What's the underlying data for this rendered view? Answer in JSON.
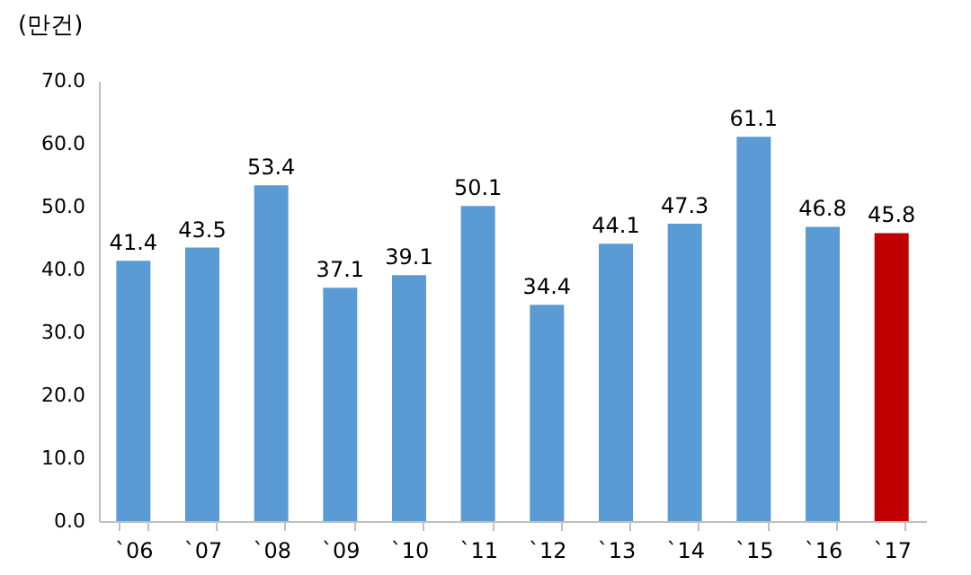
{
  "chart_data": {
    "type": "bar",
    "ylabel": "(만건)",
    "categories": [
      "`06",
      "`07",
      "`08",
      "`09",
      "`10",
      "`11",
      "`12",
      "`13",
      "`14",
      "`15",
      "`16",
      "`17"
    ],
    "values": [
      41.4,
      43.5,
      53.4,
      37.1,
      39.1,
      50.1,
      34.4,
      44.1,
      47.3,
      61.1,
      46.8,
      45.8
    ],
    "colors": [
      "#5b9bd5",
      "#5b9bd5",
      "#5b9bd5",
      "#5b9bd5",
      "#5b9bd5",
      "#5b9bd5",
      "#5b9bd5",
      "#5b9bd5",
      "#5b9bd5",
      "#5b9bd5",
      "#5b9bd5",
      "#c00000"
    ],
    "ylim": [
      0,
      70
    ],
    "yticks": [
      {
        "value": 0,
        "label": "0.0"
      },
      {
        "value": 10,
        "label": "10.0"
      },
      {
        "value": 20,
        "label": "20.0"
      },
      {
        "value": 30,
        "label": "30.0"
      },
      {
        "value": 40,
        "label": "40.0"
      },
      {
        "value": 50,
        "label": "50.0"
      },
      {
        "value": 60,
        "label": "60.0"
      },
      {
        "value": 70,
        "label": "70.0"
      }
    ],
    "data_labels": true
  }
}
